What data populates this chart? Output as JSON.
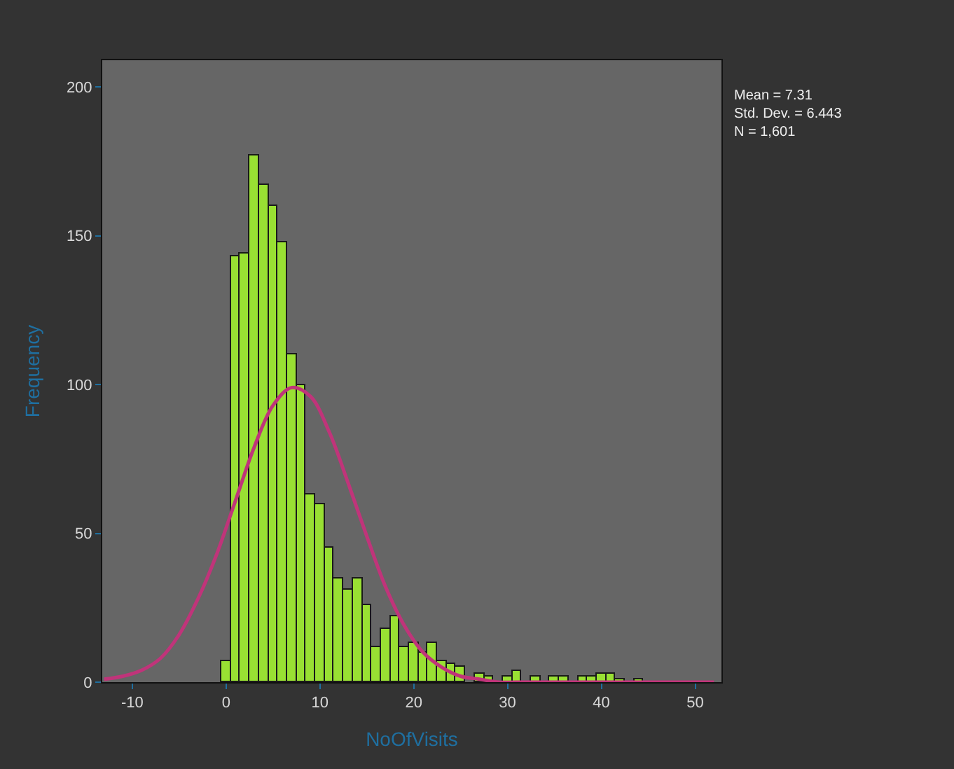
{
  "chart_data": {
    "type": "histogram",
    "xlabel": "NoOfVisits",
    "ylabel": "Frequency",
    "bins": [
      -0.5,
      0.5,
      1.5,
      2.5,
      3.5,
      4.5,
      5.5,
      6.5,
      7.5,
      8.5,
      9.5,
      10.5,
      11.5,
      12.5,
      13.5,
      14.5,
      15.5,
      16.5,
      17.5,
      18.5,
      19.5,
      20.5,
      21.5,
      22.5,
      23.5,
      24.5,
      25.5,
      26.5,
      27.5,
      28.5,
      29.5,
      30.5,
      31.5,
      32.5,
      33.5,
      34.5,
      35.5,
      36.5,
      37.5,
      38.5,
      39.5,
      40.5,
      41.5,
      42.5,
      43.5,
      44.5
    ],
    "values": [
      7,
      143,
      144,
      177,
      167,
      160,
      148,
      110,
      100,
      63,
      60,
      45,
      35,
      31,
      35,
      26,
      12,
      18,
      22,
      12,
      13,
      10,
      13,
      7,
      6,
      5,
      null,
      3,
      2,
      0,
      2,
      4,
      0,
      2,
      0,
      2,
      2,
      0,
      2,
      2,
      3,
      3,
      1,
      0,
      1
    ],
    "color": "#99e033",
    "series": [
      {
        "type": "line",
        "color": "#c0347a",
        "x": [
          -13,
          -11,
          -9,
          -7,
          -5,
          -3,
          -1,
          1,
          3,
          5,
          7,
          9,
          11,
          13,
          15,
          17,
          19,
          21,
          23,
          25,
          27,
          29,
          31,
          35,
          41,
          47,
          52
        ],
        "values": [
          1,
          2,
          4,
          8,
          16,
          28,
          43,
          61,
          79,
          93,
          99,
          96,
          84,
          67,
          49,
          32,
          19,
          10,
          5,
          2,
          1,
          0,
          0,
          0,
          0,
          0,
          0
        ]
      }
    ],
    "xlim": [
      -13.2,
      52.8
    ],
    "ylim": [
      0,
      209
    ],
    "xticks": [
      -10,
      0,
      10,
      20,
      30,
      40,
      50
    ],
    "yticks": [
      0,
      50,
      100,
      150,
      200
    ],
    "grid": false,
    "annotations": [
      "Mean = 7.31",
      "Std. Dev. = 6.443",
      "N = 1,601"
    ]
  }
}
